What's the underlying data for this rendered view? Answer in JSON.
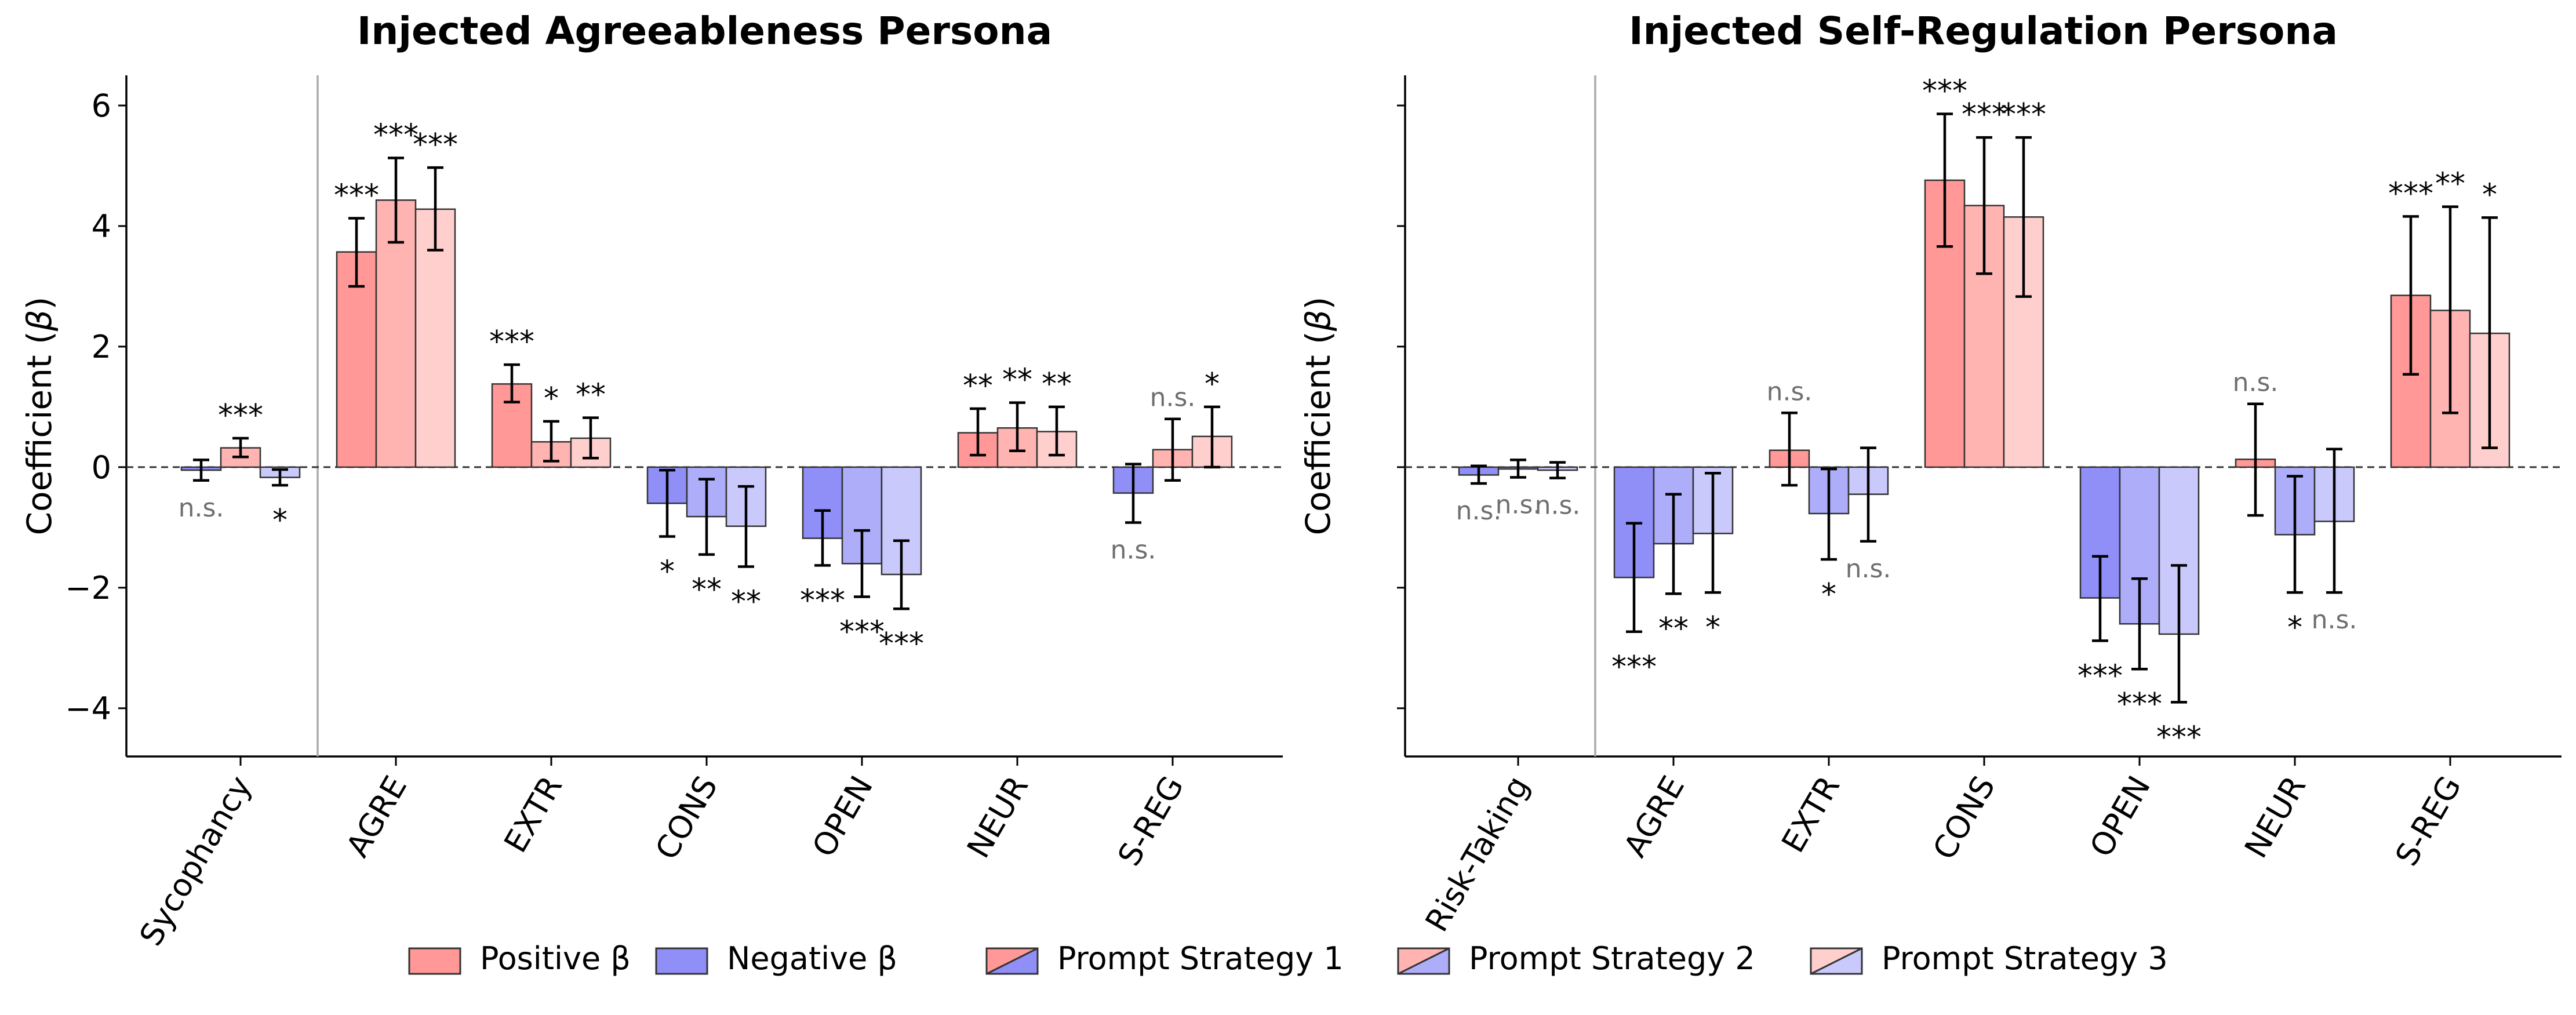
{
  "colors": {
    "positive": [
      "#ff9896",
      "#ffb4b2",
      "#ffcfcd"
    ],
    "negative": [
      "#8f8ff7",
      "#adadf9",
      "#c9c9fb"
    ],
    "ns_text": "#6e6e6e",
    "separator": "#aaaaaa"
  },
  "legend": {
    "items": [
      "Positive β",
      "Negative β",
      "Prompt Strategy 1",
      "Prompt Strategy 2",
      "Prompt Strategy 3"
    ]
  },
  "chart_data": [
    {
      "type": "bar",
      "title": "Injected Agreeableness Persona",
      "ylabel_prefix": "Coefficient (",
      "ylabel_symbol": "β",
      "ylabel_suffix": ")",
      "ylim": [
        -4.8,
        6.5
      ],
      "yticks": [
        -4,
        -2,
        0,
        2,
        4,
        6
      ],
      "ytick_labels": [
        "−4",
        "−2",
        "0",
        "2",
        "4",
        "6"
      ],
      "categories": [
        "Sycophancy",
        "AGRE",
        "EXTR",
        "CONS",
        "OPEN",
        "NEUR",
        "S-REG"
      ],
      "series": [
        {
          "name": "Prompt Strategy 1",
          "values": [
            -0.05,
            3.57,
            1.38,
            -0.6,
            -1.18,
            0.57,
            -0.43
          ],
          "err_low": [
            -0.22,
            3.0,
            1.08,
            -1.15,
            -1.63,
            0.2,
            -0.92
          ],
          "err_high": [
            0.12,
            4.13,
            1.7,
            -0.05,
            -0.72,
            0.97,
            0.05
          ],
          "sig": [
            "n.s.",
            "***",
            "***",
            "*",
            "***",
            "**",
            "n.s."
          ]
        },
        {
          "name": "Prompt Strategy 2",
          "values": [
            0.32,
            4.43,
            0.42,
            -0.82,
            -1.6,
            0.65,
            0.29
          ],
          "err_low": [
            0.17,
            3.73,
            0.1,
            -1.45,
            -2.15,
            0.27,
            -0.22
          ],
          "err_high": [
            0.48,
            5.13,
            0.76,
            -0.2,
            -1.05,
            1.07,
            0.8
          ],
          "sig": [
            "***",
            "***",
            "*",
            "**",
            "***",
            "**",
            "n.s."
          ]
        },
        {
          "name": "Prompt Strategy 3",
          "values": [
            -0.17,
            4.28,
            0.48,
            -0.98,
            -1.78,
            0.59,
            0.51
          ],
          "err_low": [
            -0.3,
            3.6,
            0.15,
            -1.65,
            -2.35,
            0.2,
            0.0
          ],
          "err_high": [
            -0.04,
            4.97,
            0.82,
            -0.32,
            -1.22,
            1.0,
            1.0
          ],
          "sig": [
            "*",
            "***",
            "**",
            "**",
            "***",
            "**",
            "*"
          ]
        }
      ]
    },
    {
      "type": "bar",
      "title": "Injected Self-Regulation Persona",
      "ylabel_prefix": "Coefficient (",
      "ylabel_symbol": "β",
      "ylabel_suffix": ")",
      "ylim": [
        -4.8,
        6.5
      ],
      "yticks": [
        -4,
        -2,
        0,
        2,
        4,
        6
      ],
      "ytick_labels": [
        "",
        "",
        "",
        "",
        "",
        ""
      ],
      "categories": [
        "Risk-Taking",
        "AGRE",
        "EXTR",
        "CONS",
        "OPEN",
        "NEUR",
        "S-REG"
      ],
      "series": [
        {
          "name": "Prompt Strategy 1",
          "values": [
            -0.13,
            -1.83,
            0.28,
            4.76,
            -2.17,
            0.13,
            2.85
          ],
          "err_low": [
            -0.27,
            -2.73,
            -0.3,
            3.66,
            -2.88,
            -0.8,
            1.54
          ],
          "err_high": [
            0.02,
            -0.93,
            0.9,
            5.86,
            -1.48,
            1.05,
            4.16
          ],
          "sig": [
            "n.s.",
            "***",
            "n.s.",
            "***",
            "***",
            "n.s.",
            "***"
          ]
        },
        {
          "name": "Prompt Strategy 2",
          "values": [
            -0.03,
            -1.27,
            -0.77,
            4.34,
            -2.6,
            -1.12,
            2.6
          ],
          "err_low": [
            -0.17,
            -2.1,
            -1.53,
            3.21,
            -3.35,
            -2.08,
            0.9
          ],
          "err_high": [
            0.12,
            -0.45,
            -0.03,
            5.47,
            -1.85,
            -0.15,
            4.32
          ],
          "sig": [
            "n.s.",
            "**",
            "*",
            "***",
            "***",
            "*",
            "**"
          ]
        },
        {
          "name": "Prompt Strategy 3",
          "values": [
            -0.05,
            -1.1,
            -0.45,
            4.15,
            -2.77,
            -0.9,
            2.22
          ],
          "err_low": [
            -0.18,
            -2.08,
            -1.23,
            2.83,
            -3.9,
            -2.08,
            0.32
          ],
          "err_high": [
            0.08,
            -0.1,
            0.32,
            5.47,
            -1.63,
            0.3,
            4.14
          ],
          "sig": [
            "n.s.",
            "*",
            "n.s.",
            "***",
            "***",
            "n.s.",
            "*"
          ]
        }
      ]
    }
  ]
}
